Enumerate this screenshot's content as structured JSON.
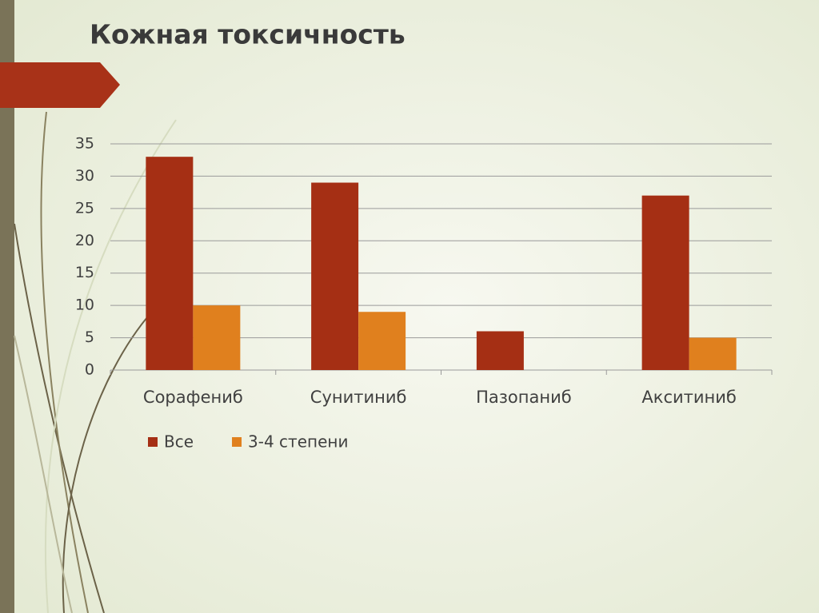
{
  "chart_data": {
    "type": "bar",
    "title": "Кожная токсичность",
    "categories": [
      "Сорафениб",
      "Сунитиниб",
      "Пазопаниб",
      "Акситиниб"
    ],
    "series": [
      {
        "name": "Все",
        "color": "#a52f14",
        "values": [
          33,
          29,
          6,
          27
        ]
      },
      {
        "name": "3-4 степени",
        "color": "#e0801e",
        "values": [
          10,
          9,
          null,
          5
        ]
      }
    ],
    "ylim": [
      0,
      35
    ],
    "yticks": [
      0,
      5,
      10,
      15,
      20,
      25,
      30,
      35
    ],
    "grid": true,
    "legend": "bottom"
  }
}
